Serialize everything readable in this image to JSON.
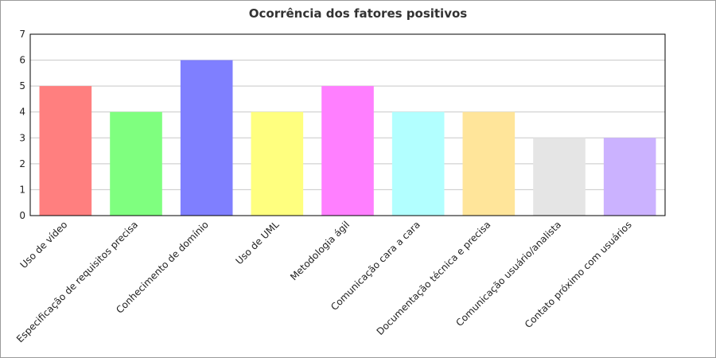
{
  "chart_data": {
    "type": "bar",
    "title": "Ocorrência dos fatores positivos",
    "xlabel": "",
    "ylabel": "",
    "ylim": [
      0,
      7
    ],
    "yticks": [
      "0",
      "1",
      "2",
      "3",
      "4",
      "5",
      "6",
      "7"
    ],
    "grid": true,
    "legend": "none",
    "categories": [
      "Uso de vídeo",
      "Especificação de requisitos precisa",
      "Conhecimento de domínio",
      "Uso de UML",
      "Metodologia ágil",
      "Comunicação cara a cara",
      "Documentação técnica e precisa",
      "Comunicação usuário/analista",
      "Contato próximo com usuários"
    ],
    "values": [
      5,
      4,
      6,
      4,
      5,
      4,
      4,
      3,
      3
    ],
    "colors": [
      "#ff7f7f",
      "#7fff7f",
      "#7f7fff",
      "#ffff7f",
      "#ff7fff",
      "#b2ffff",
      "#ffe59a",
      "#e5e5e5",
      "#cbb2ff"
    ]
  }
}
